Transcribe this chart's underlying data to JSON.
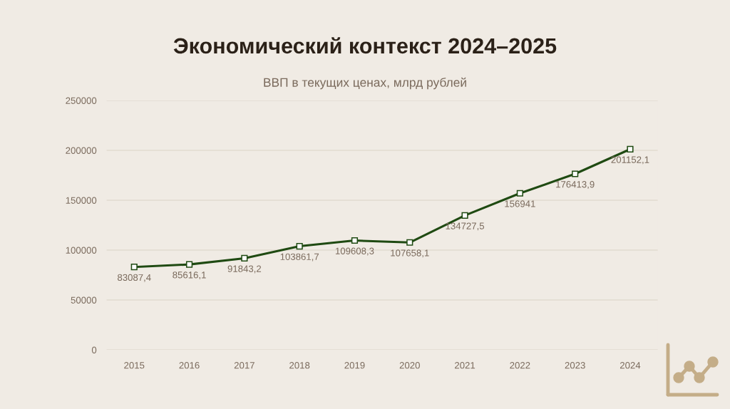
{
  "chart_data": {
    "type": "line",
    "title": "Экономический контекст 2024–2025",
    "subtitle": "ВВП в текущих ценах, млрд рублей",
    "categories": [
      "2015",
      "2016",
      "2017",
      "2018",
      "2019",
      "2020",
      "2021",
      "2022",
      "2023",
      "2024"
    ],
    "series": [
      {
        "color": "#1f4a12",
        "values": [
          83087.4,
          85616.1,
          91843.2,
          103861.7,
          109608.3,
          107658.1,
          134727.5,
          156941,
          176413.9,
          201152.1
        ],
        "value_labels": [
          "83087,4",
          "85616,1",
          "91843,2",
          "103861,7",
          "109608,3",
          "107658,1",
          "134727,5",
          "156941",
          "176413,9",
          "201152,1"
        ]
      }
    ],
    "ylim": [
      0,
      250000
    ],
    "yticks": [
      0,
      50000,
      100000,
      150000,
      200000,
      250000
    ],
    "grid": "y",
    "marker": "square",
    "line_style": "solid"
  }
}
